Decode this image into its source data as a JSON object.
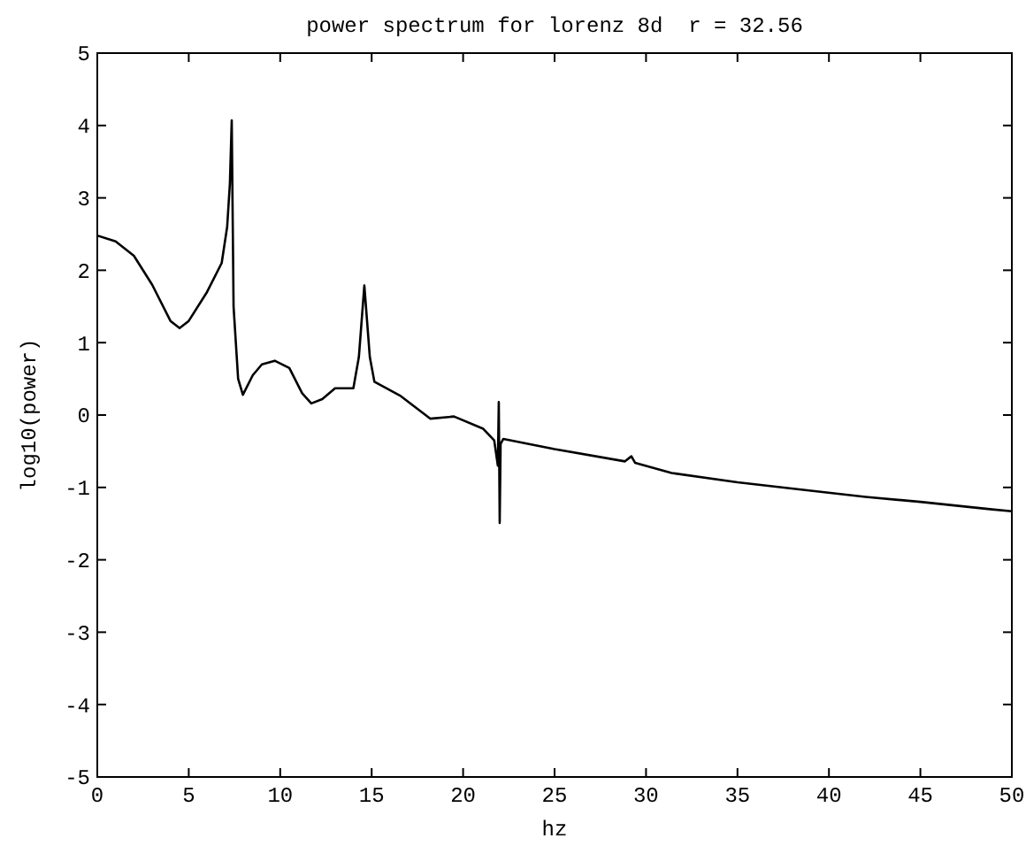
{
  "chart_data": {
    "type": "line",
    "title": "power spectrum for lorenz 8d  r = 32.56",
    "xlabel": "hz",
    "ylabel": "log10(power)",
    "x": [
      0,
      1,
      2,
      3,
      4,
      4.5,
      5,
      6,
      6.8,
      7.1,
      7.25,
      7.35,
      7.45,
      7.7,
      7.96,
      8.5,
      9,
      9.7,
      10.5,
      11.2,
      11.7,
      12.3,
      13,
      14,
      14.3,
      14.6,
      14.9,
      15.15,
      16.6,
      18.2,
      19.5,
      21.1,
      21.7,
      21.9,
      21.95,
      22.0,
      22.05,
      22.2,
      25,
      28.85,
      29.2,
      29.4,
      31.4,
      35,
      38.8,
      42,
      45,
      48.8,
      50
    ],
    "series": [
      {
        "color": "#000000",
        "values": [
          2.48,
          2.4,
          2.2,
          1.8,
          1.3,
          1.2,
          1.3,
          1.7,
          2.1,
          2.6,
          3.2,
          4.07,
          1.5,
          0.5,
          0.28,
          0.55,
          0.7,
          0.75,
          0.65,
          0.3,
          0.16,
          0.22,
          0.37,
          0.37,
          0.8,
          1.79,
          0.8,
          0.46,
          0.26,
          -0.05,
          -0.02,
          -0.19,
          -0.35,
          -0.7,
          0.18,
          -1.49,
          -0.4,
          -0.33,
          -0.47,
          -0.64,
          -0.57,
          -0.66,
          -0.8,
          -0.93,
          -1.04,
          -1.13,
          -1.2,
          -1.3,
          -1.33
        ]
      }
    ],
    "xlim": [
      0,
      50
    ],
    "xticks": [
      0,
      5,
      10,
      15,
      20,
      25,
      30,
      35,
      40,
      45,
      50
    ],
    "ylim": [
      -5,
      5
    ],
    "yticks": [
      -5,
      -4,
      -3,
      -2,
      -1,
      0,
      1,
      2,
      3,
      4,
      5
    ],
    "grid": false,
    "marker": "none",
    "line_style": "solid"
  }
}
